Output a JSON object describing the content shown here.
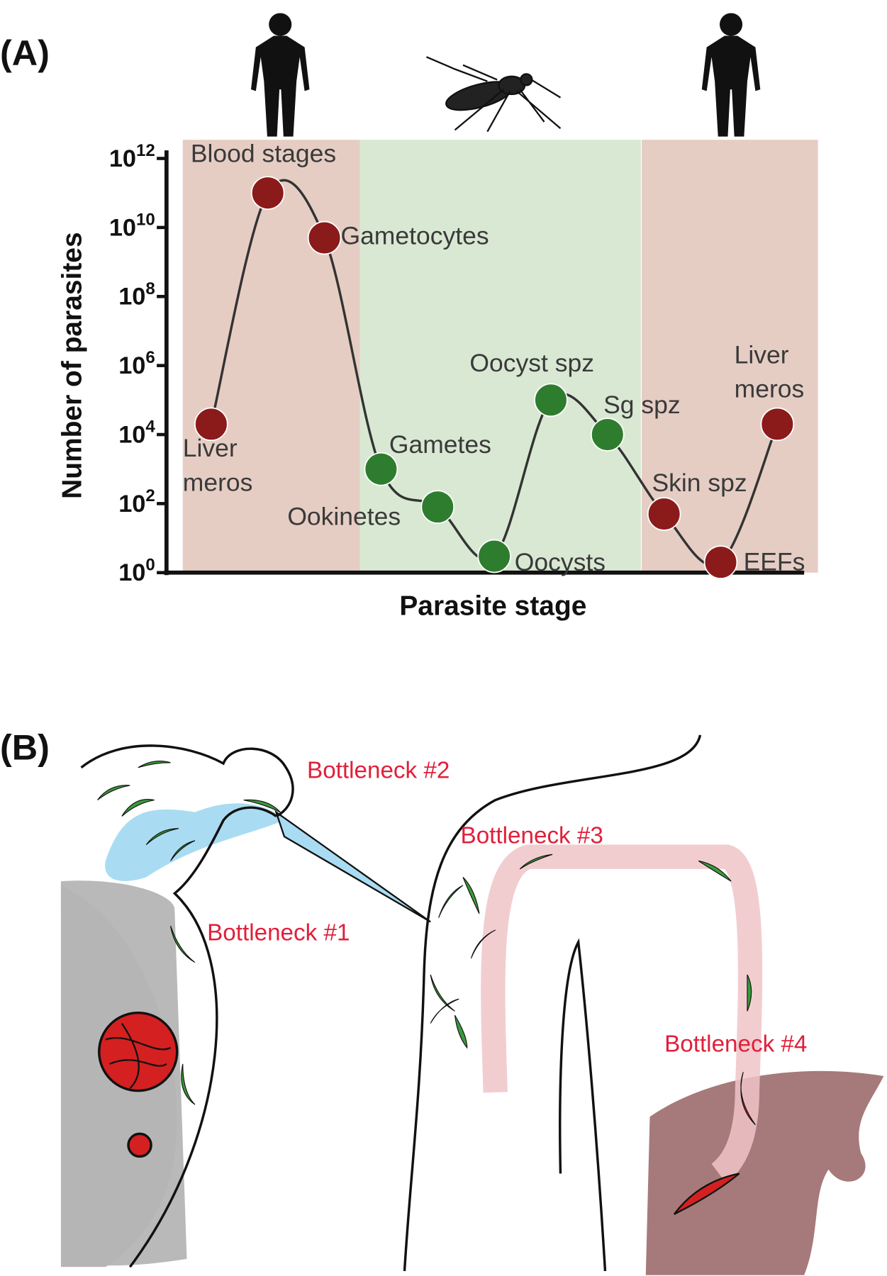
{
  "panel_labels": [
    "(A)",
    "(B)"
  ],
  "chart_data": {
    "type": "line",
    "y_label": "Number of parasites",
    "x_label": "Parasite stage",
    "categories": [
      "Liver\nmeros",
      "Blood stages",
      "Gametocytes",
      "Gametes",
      "Ookinetes",
      "Oocysts",
      "Oocyst spz",
      "Sg spz",
      "Skin spz",
      "EEFs",
      "Liver\nmeros"
    ],
    "values": [
      20000,
      100000000000,
      5000000000,
      1000,
      80,
      3,
      100000,
      10000,
      50,
      2,
      20000
    ],
    "colors": [
      "#8b1a1a",
      "#8b1a1a",
      "#8b1a1a",
      "#2e7d2e",
      "#2e7d2e",
      "#2e7d2e",
      "#2e7d2e",
      "#2e7d2e",
      "#8b1a1a",
      "#8b1a1a",
      "#8b1a1a"
    ],
    "line_color": "#333333",
    "log_scale": true,
    "ylim": [
      1,
      1000000000000
    ],
    "yticks": [
      {
        "value": 1,
        "label": "10^0"
      },
      {
        "value": 100,
        "label": "10^2"
      },
      {
        "value": 10000,
        "label": "10^4"
      },
      {
        "value": 1000000,
        "label": "10^6"
      },
      {
        "value": 100000000,
        "label": "10^8"
      },
      {
        "value": 10000000000,
        "label": "10^10"
      },
      {
        "value": 1000000000000,
        "label": "10^12"
      }
    ]
  },
  "diagram": {
    "annotations": [
      "Bottleneck #1",
      "Bottleneck #2",
      "Bottleneck #3",
      "Bottleneck #4"
    ]
  }
}
